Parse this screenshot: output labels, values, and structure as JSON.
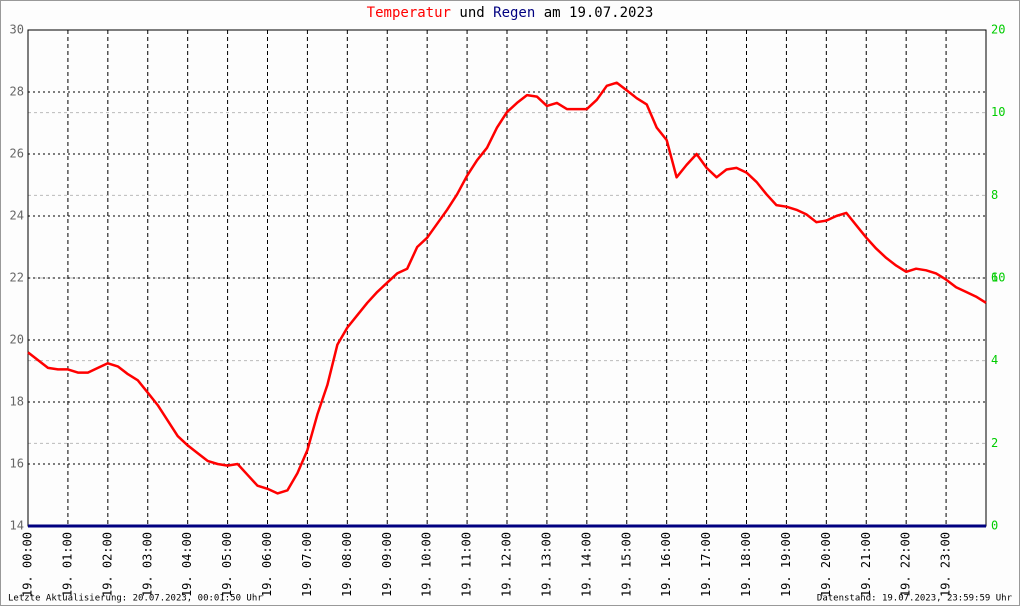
{
  "chart_data": {
    "type": "line",
    "title": [
      {
        "text": "Temperatur",
        "color": "#ff0000"
      },
      {
        "text": "und",
        "color": "#000000"
      },
      {
        "text": "Regen",
        "color": "#000080"
      },
      {
        "text": "am 19.07.2023",
        "color": "#000000"
      }
    ],
    "footer_left": "Letzte Aktualisierung: 20.07.2023, 00:01:50 Uhr",
    "footer_right": "Datenstand: 19.07.2023, 23:59:59 Uhr",
    "xlim": [
      0,
      24
    ],
    "xticks": [
      {
        "value": 0,
        "label": "19. 00:00"
      },
      {
        "value": 1,
        "label": "19. 01:00"
      },
      {
        "value": 2,
        "label": "19. 02:00"
      },
      {
        "value": 3,
        "label": "19. 03:00"
      },
      {
        "value": 4,
        "label": "19. 04:00"
      },
      {
        "value": 5,
        "label": "19. 05:00"
      },
      {
        "value": 6,
        "label": "19. 06:00"
      },
      {
        "value": 7,
        "label": "19. 07:00"
      },
      {
        "value": 8,
        "label": "19. 08:00"
      },
      {
        "value": 9,
        "label": "19. 09:00"
      },
      {
        "value": 10,
        "label": "19. 10:00"
      },
      {
        "value": 11,
        "label": "19. 11:00"
      },
      {
        "value": 12,
        "label": "19. 12:00"
      },
      {
        "value": 13,
        "label": "19. 13:00"
      },
      {
        "value": 14,
        "label": "19. 14:00"
      },
      {
        "value": 15,
        "label": "19. 15:00"
      },
      {
        "value": 16,
        "label": "19. 16:00"
      },
      {
        "value": 17,
        "label": "19. 17:00"
      },
      {
        "value": 18,
        "label": "19. 18:00"
      },
      {
        "value": 19,
        "label": "19. 19:00"
      },
      {
        "value": 20,
        "label": "19. 20:00"
      },
      {
        "value": 21,
        "label": "19. 21:00"
      },
      {
        "value": 22,
        "label": "19. 22:00"
      },
      {
        "value": 23,
        "label": "19. 23:00"
      }
    ],
    "ylim": [
      14,
      30
    ],
    "yticks": [
      14,
      16,
      18,
      20,
      22,
      24,
      26,
      28,
      30
    ],
    "y2lim": [
      0,
      20
    ],
    "y2ticks": [
      0,
      10,
      20
    ],
    "y3lim": [
      0,
      12
    ],
    "y3ticks": [
      2,
      4,
      6,
      8,
      10
    ],
    "grid": true,
    "series": [
      {
        "name": "Temperatur",
        "color": "#ff0000",
        "x": [
          0,
          0.25,
          0.5,
          0.75,
          1,
          1.25,
          1.5,
          1.75,
          2,
          2.25,
          2.5,
          2.75,
          3,
          3.25,
          3.5,
          3.75,
          4,
          4.25,
          4.5,
          4.75,
          5,
          5.25,
          5.5,
          5.75,
          6,
          6.25,
          6.5,
          6.75,
          7,
          7.25,
          7.5,
          7.75,
          8,
          8.25,
          8.5,
          8.75,
          9,
          9.25,
          9.5,
          9.75,
          10,
          10.25,
          10.5,
          10.75,
          11,
          11.25,
          11.5,
          11.75,
          12,
          12.25,
          12.5,
          12.75,
          13,
          13.25,
          13.5,
          13.75,
          14,
          14.25,
          14.5,
          14.75,
          15,
          15.25,
          15.5,
          15.75,
          16,
          16.25,
          16.5,
          16.75,
          17,
          17.25,
          17.5,
          17.75,
          18,
          18.25,
          18.5,
          18.75,
          19,
          19.25,
          19.5,
          19.75,
          20,
          20.25,
          20.5,
          20.75,
          21,
          21.25,
          21.5,
          21.75,
          22,
          22.25,
          22.5,
          22.75,
          23,
          23.25,
          23.5,
          23.75,
          24
        ],
        "values": [
          19.6,
          19.35,
          19.1,
          19.05,
          19.05,
          18.95,
          18.95,
          19.1,
          19.25,
          19.15,
          18.9,
          18.7,
          18.3,
          17.9,
          17.4,
          16.9,
          16.6,
          16.35,
          16.1,
          16.0,
          15.95,
          16.0,
          15.65,
          15.3,
          15.2,
          15.05,
          15.15,
          15.7,
          16.45,
          17.6,
          18.55,
          19.85,
          20.4,
          20.8,
          21.2,
          21.55,
          21.85,
          22.15,
          22.3,
          23.0,
          23.3,
          23.75,
          24.2,
          24.7,
          25.3,
          25.8,
          26.2,
          26.85,
          27.35,
          27.65,
          27.9,
          27.85,
          27.55,
          27.65,
          27.45,
          27.45,
          27.45,
          27.75,
          28.2,
          28.3,
          28.05,
          27.8,
          27.6,
          26.85,
          26.45,
          25.25,
          25.65,
          26.0,
          25.55,
          25.25,
          25.5,
          25.55,
          25.4,
          25.1,
          24.7,
          24.35,
          24.3,
          24.2,
          24.05,
          23.8,
          23.85,
          24.0,
          24.1,
          23.7,
          23.3,
          22.95,
          22.65,
          22.4,
          22.2,
          22.3,
          22.25,
          22.15,
          21.95,
          21.7,
          21.55,
          21.4,
          21.2
        ]
      },
      {
        "name": "Regen",
        "color": "#000080",
        "axis": "y2",
        "x": [
          0,
          1,
          2,
          3,
          4,
          5,
          6,
          7,
          8,
          9,
          10,
          11,
          12,
          13,
          14,
          15,
          16,
          17,
          18,
          19,
          20,
          21,
          22,
          23,
          24
        ],
        "values": [
          0,
          0,
          0,
          0,
          0,
          0,
          0,
          0,
          0,
          0,
          0,
          0,
          0,
          0,
          0,
          0,
          0,
          0,
          0,
          0,
          0,
          0,
          0,
          0,
          0
        ]
      }
    ]
  }
}
